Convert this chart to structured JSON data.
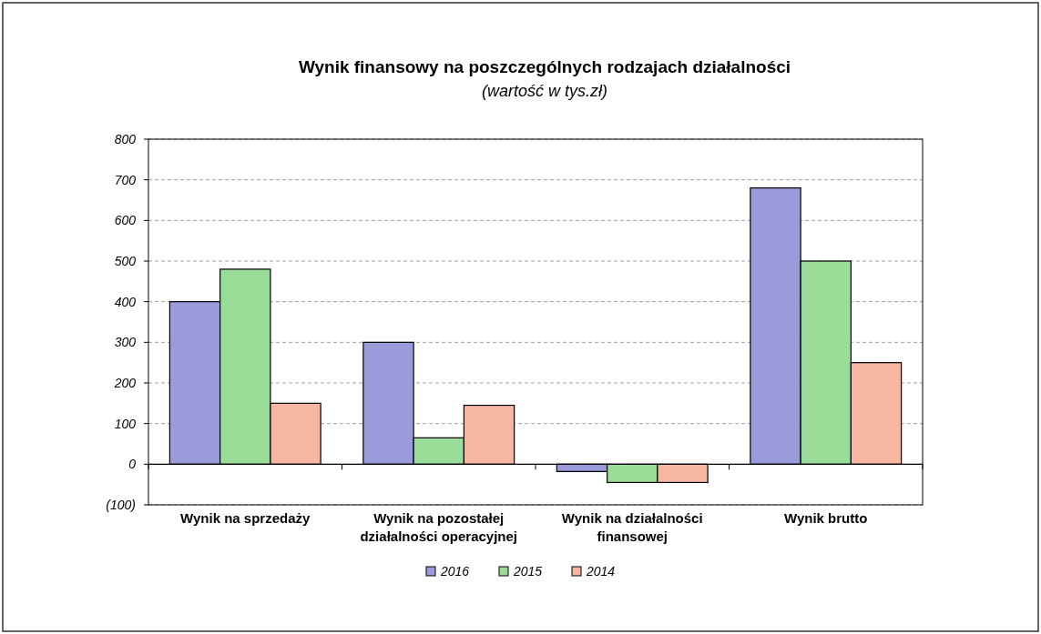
{
  "chart_data": {
    "type": "bar",
    "title": "Wynik finansowy na poszczególnych rodzajach działalności",
    "subtitle": "(wartość w tys.zł)",
    "categories": [
      "Wynik na sprzedaży",
      "Wynik na pozostałej działalności operacyjnej",
      "Wynik na działalności finansowej",
      "Wynik brutto"
    ],
    "series": [
      {
        "name": "2016",
        "color": "#9b9bdc",
        "values": [
          400,
          300,
          -18,
          680
        ]
      },
      {
        "name": "2015",
        "color": "#99dd99",
        "values": [
          480,
          65,
          -45,
          500
        ]
      },
      {
        "name": "2014",
        "color": "#f6b6a2",
        "values": [
          150,
          145,
          -45,
          250
        ]
      }
    ],
    "ylim": [
      -100,
      800
    ],
    "yticks": [
      {
        "value": -100,
        "label": "(100)"
      },
      0,
      100,
      200,
      300,
      400,
      500,
      600,
      700,
      800
    ],
    "grid": "y",
    "legend": "bottom"
  }
}
